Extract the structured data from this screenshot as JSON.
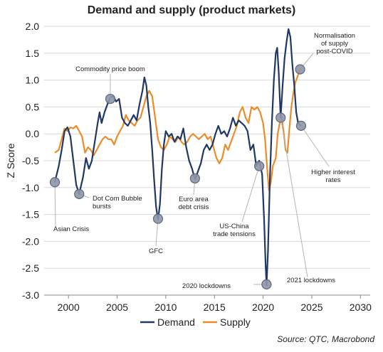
{
  "title": "Demand and supply (product markets)",
  "source": "Source: QTC, Macrobond",
  "chart_data": {
    "type": "line",
    "title": "Demand and supply (product markets)",
    "ylabel": "Z Score",
    "xlabel": "",
    "xlim": [
      1997.5,
      2031
    ],
    "ylim": [
      -3.0,
      2.0
    ],
    "x_ticks": [
      2000,
      2005,
      2010,
      2015,
      2020,
      2025,
      2030
    ],
    "y_ticks": [
      -3.0,
      -2.5,
      -2.0,
      -1.5,
      -1.0,
      -0.5,
      0.0,
      0.5,
      1.0,
      1.5,
      2.0
    ],
    "y_tick_labels": [
      "-3.0",
      "-2.5",
      "-2.0",
      "-1.5",
      "-1.0",
      "-0.5",
      "0.0",
      "0.5",
      "1.0",
      "1.5",
      "2.0"
    ],
    "grid": "horizontal",
    "legend_position": "bottom",
    "series": [
      {
        "name": "Demand",
        "color": "#1f3864",
        "points": [
          [
            1998.6,
            -0.9
          ],
          [
            1999.0,
            -0.6
          ],
          [
            1999.3,
            -0.3
          ],
          [
            1999.6,
            0.05
          ],
          [
            1999.9,
            0.12
          ],
          [
            2000.2,
            -0.05
          ],
          [
            2000.5,
            -0.5
          ],
          [
            2000.8,
            -0.95
          ],
          [
            2001.1,
            -1.12
          ],
          [
            2001.5,
            -0.8
          ],
          [
            2001.8,
            -0.45
          ],
          [
            2002.1,
            -0.65
          ],
          [
            2002.4,
            -0.5
          ],
          [
            2002.7,
            -0.15
          ],
          [
            2003.0,
            0.2
          ],
          [
            2003.2,
            0.4
          ],
          [
            2003.4,
            0.2
          ],
          [
            2003.7,
            0.4
          ],
          [
            2004.0,
            0.55
          ],
          [
            2004.3,
            0.68
          ],
          [
            2004.6,
            0.7
          ],
          [
            2004.9,
            0.6
          ],
          [
            2005.2,
            0.65
          ],
          [
            2005.5,
            0.3
          ],
          [
            2005.8,
            0.2
          ],
          [
            2006.1,
            0.15
          ],
          [
            2006.4,
            0.25
          ],
          [
            2006.7,
            0.35
          ],
          [
            2007.0,
            0.25
          ],
          [
            2007.3,
            0.55
          ],
          [
            2007.6,
            0.8
          ],
          [
            2007.8,
            1.05
          ],
          [
            2008.0,
            0.9
          ],
          [
            2008.2,
            0.5
          ],
          [
            2008.4,
            0.2
          ],
          [
            2008.6,
            -0.3
          ],
          [
            2008.8,
            -0.85
          ],
          [
            2009.0,
            -1.35
          ],
          [
            2009.2,
            -1.6
          ],
          [
            2009.4,
            -1.3
          ],
          [
            2009.6,
            -0.65
          ],
          [
            2009.8,
            -0.2
          ],
          [
            2010.0,
            0.05
          ],
          [
            2010.3,
            -0.05
          ],
          [
            2010.6,
            0.0
          ],
          [
            2010.9,
            -0.15
          ],
          [
            2011.2,
            -0.05
          ],
          [
            2011.5,
            -0.1
          ],
          [
            2011.8,
            0.1
          ],
          [
            2012.1,
            -0.25
          ],
          [
            2012.4,
            -0.5
          ],
          [
            2012.7,
            -0.65
          ],
          [
            2013.0,
            -0.85
          ],
          [
            2013.3,
            -0.7
          ],
          [
            2013.6,
            -0.55
          ],
          [
            2013.9,
            -0.3
          ],
          [
            2014.2,
            -0.2
          ],
          [
            2014.5,
            -0.3
          ],
          [
            2014.8,
            -0.2
          ],
          [
            2015.1,
            0.0
          ],
          [
            2015.4,
            0.15
          ],
          [
            2015.7,
            0.0
          ],
          [
            2016.0,
            0.05
          ],
          [
            2016.3,
            -0.05
          ],
          [
            2016.6,
            0.1
          ],
          [
            2016.9,
            0.3
          ],
          [
            2017.2,
            0.15
          ],
          [
            2017.5,
            0.25
          ],
          [
            2017.8,
            0.2
          ],
          [
            2018.1,
            0.15
          ],
          [
            2018.4,
            0.05
          ],
          [
            2018.7,
            -0.3
          ],
          [
            2019.0,
            -0.2
          ],
          [
            2019.3,
            -0.6
          ],
          [
            2019.6,
            -0.5
          ],
          [
            2019.9,
            -0.75
          ],
          [
            2020.1,
            -1.6
          ],
          [
            2020.25,
            -2.4
          ],
          [
            2020.35,
            -2.82
          ],
          [
            2020.5,
            -2.2
          ],
          [
            2020.7,
            -0.8
          ],
          [
            2020.9,
            0.2
          ],
          [
            2021.1,
            1.0
          ],
          [
            2021.3,
            1.5
          ],
          [
            2021.45,
            1.6
          ],
          [
            2021.6,
            1.15
          ],
          [
            2021.8,
            0.3
          ],
          [
            2022.0,
            0.9
          ],
          [
            2022.2,
            1.4
          ],
          [
            2022.4,
            1.7
          ],
          [
            2022.6,
            1.95
          ],
          [
            2022.8,
            1.8
          ],
          [
            2023.0,
            1.3
          ],
          [
            2023.2,
            0.9
          ],
          [
            2023.4,
            0.4
          ],
          [
            2023.6,
            0.2
          ],
          [
            2023.9,
            0.15
          ]
        ]
      },
      {
        "name": "Supply",
        "color": "#ed8b2b",
        "points": [
          [
            1998.6,
            -0.35
          ],
          [
            1999.0,
            -0.3
          ],
          [
            1999.3,
            -0.1
          ],
          [
            1999.6,
            0.1
          ],
          [
            1999.9,
            0.05
          ],
          [
            2000.2,
            0.12
          ],
          [
            2000.5,
            0.1
          ],
          [
            2000.8,
            0.15
          ],
          [
            2001.1,
            0.05
          ],
          [
            2001.4,
            -0.05
          ],
          [
            2001.7,
            -0.35
          ],
          [
            2002.0,
            -0.25
          ],
          [
            2002.3,
            -0.3
          ],
          [
            2002.6,
            -0.4
          ],
          [
            2002.9,
            -0.3
          ],
          [
            2003.2,
            -0.2
          ],
          [
            2003.5,
            -0.1
          ],
          [
            2003.8,
            -0.05
          ],
          [
            2004.1,
            -0.1
          ],
          [
            2004.4,
            -0.1
          ],
          [
            2004.7,
            -0.2
          ],
          [
            2005.0,
            -0.05
          ],
          [
            2005.3,
            0.05
          ],
          [
            2005.6,
            0.15
          ],
          [
            2005.9,
            0.35
          ],
          [
            2006.2,
            0.25
          ],
          [
            2006.5,
            0.2
          ],
          [
            2006.8,
            0.15
          ],
          [
            2007.1,
            0.25
          ],
          [
            2007.4,
            0.3
          ],
          [
            2007.7,
            0.5
          ],
          [
            2008.0,
            0.7
          ],
          [
            2008.3,
            0.8
          ],
          [
            2008.6,
            0.7
          ],
          [
            2008.9,
            0.3
          ],
          [
            2009.2,
            -0.1
          ],
          [
            2009.5,
            -0.25
          ],
          [
            2009.8,
            -0.3
          ],
          [
            2010.1,
            -0.2
          ],
          [
            2010.4,
            -0.05
          ],
          [
            2010.7,
            -0.1
          ],
          [
            2011.0,
            -0.15
          ],
          [
            2011.3,
            -0.05
          ],
          [
            2011.6,
            -0.15
          ],
          [
            2011.9,
            -0.2
          ],
          [
            2012.2,
            -0.15
          ],
          [
            2012.5,
            -0.05
          ],
          [
            2012.8,
            0.0
          ],
          [
            2013.1,
            -0.05
          ],
          [
            2013.4,
            -0.1
          ],
          [
            2013.7,
            -0.05
          ],
          [
            2014.0,
            0.0
          ],
          [
            2014.3,
            -0.1
          ],
          [
            2014.6,
            -0.05
          ],
          [
            2014.9,
            -0.25
          ],
          [
            2015.2,
            -0.45
          ],
          [
            2015.5,
            -0.55
          ],
          [
            2015.8,
            -0.45
          ],
          [
            2016.1,
            -0.2
          ],
          [
            2016.4,
            -0.3
          ],
          [
            2016.7,
            -0.15
          ],
          [
            2017.0,
            0.0
          ],
          [
            2017.3,
            0.15
          ],
          [
            2017.6,
            0.4
          ],
          [
            2017.9,
            0.5
          ],
          [
            2018.2,
            0.3
          ],
          [
            2018.5,
            0.2
          ],
          [
            2018.8,
            0.5
          ],
          [
            2019.1,
            0.45
          ],
          [
            2019.4,
            0.5
          ],
          [
            2019.7,
            0.4
          ],
          [
            2020.0,
            0.2
          ],
          [
            2020.2,
            -0.1
          ],
          [
            2020.4,
            -0.6
          ],
          [
            2020.6,
            -1.05
          ],
          [
            2020.8,
            -0.9
          ],
          [
            2021.0,
            -0.6
          ],
          [
            2021.3,
            -0.45
          ],
          [
            2021.5,
            0.0
          ],
          [
            2021.7,
            0.2
          ],
          [
            2021.9,
            0.3
          ],
          [
            2022.1,
            0.05
          ],
          [
            2022.3,
            -0.3
          ],
          [
            2022.5,
            -0.35
          ],
          [
            2022.7,
            0.1
          ],
          [
            2022.9,
            0.5
          ],
          [
            2023.1,
            0.75
          ],
          [
            2023.3,
            0.95
          ],
          [
            2023.5,
            1.05
          ],
          [
            2023.8,
            1.2
          ]
        ]
      }
    ],
    "annotations": [
      {
        "text": [
          "Asian Crisis"
        ],
        "x": 1998.6,
        "y": -0.9
      },
      {
        "text": [
          "Dot Com Bubble",
          "bursts"
        ],
        "x": 2001.1,
        "y": -1.12
      },
      {
        "text": [
          "Commodity price boom"
        ],
        "x": 2004.3,
        "y": 0.65
      },
      {
        "text": [
          "GFC"
        ],
        "x": 2009.2,
        "y": -1.58
      },
      {
        "text": [
          "Euro area",
          "debt crisis"
        ],
        "x": 2013.0,
        "y": -0.83
      },
      {
        "text": [
          "US-China",
          "trade tensions"
        ],
        "x": 2019.6,
        "y": -0.6
      },
      {
        "text": [
          "2020 lockdowns"
        ],
        "x": 2020.35,
        "y": -2.8
      },
      {
        "text": [
          "2021 lockdowns"
        ],
        "x": 2021.8,
        "y": 0.3
      },
      {
        "text": [
          "Higher interest",
          "rates"
        ],
        "x": 2023.9,
        "y": 0.15
      },
      {
        "text": [
          "Normalisation",
          "of supply",
          "post-COVID"
        ],
        "x": 2023.8,
        "y": 1.2
      }
    ]
  }
}
